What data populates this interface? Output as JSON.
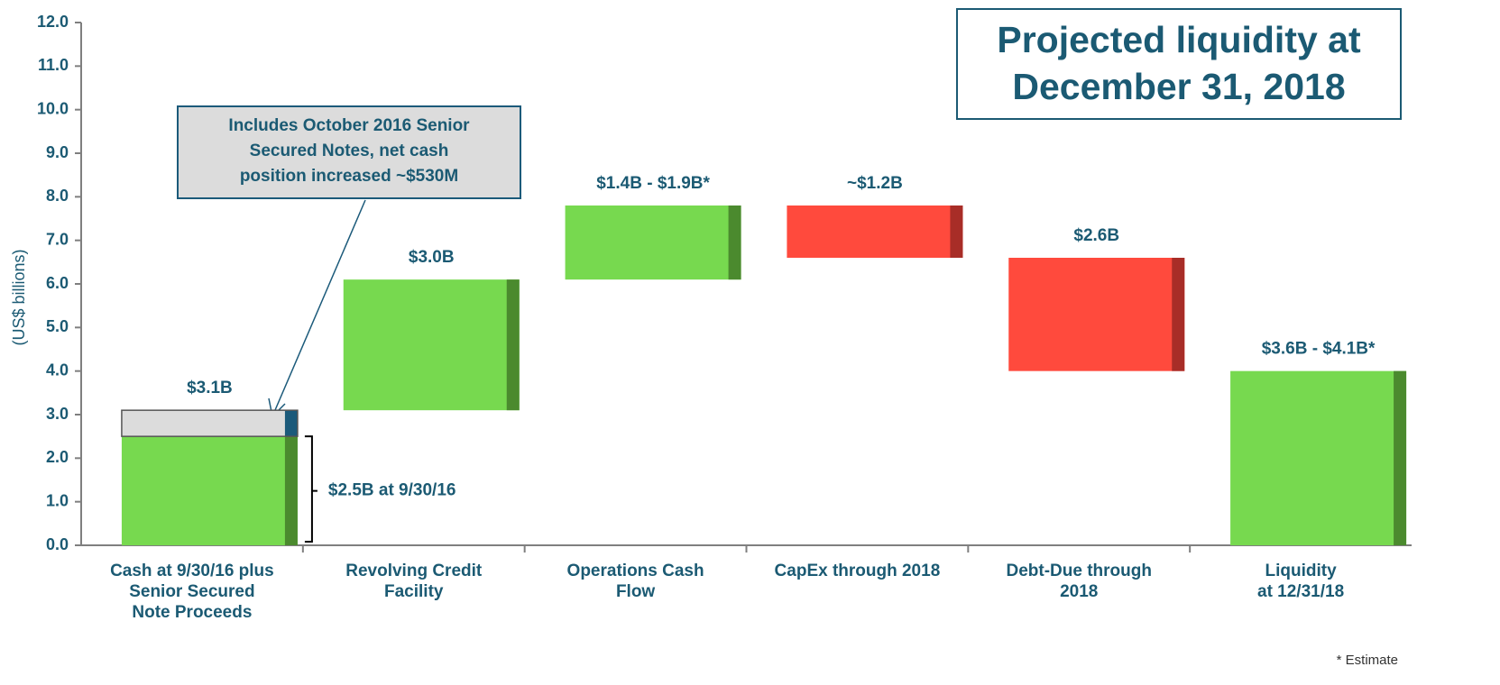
{
  "chart_data": {
    "type": "waterfall",
    "title": "Projected liquidity at\nDecember 31, 2018",
    "y_label": "(US$ billions)",
    "categories": [
      "Cash at 9/30/16 plus\nSenior Secured\nNote Proceeds",
      "Revolving Credit\nFacility",
      "Operations Cash\nFlow",
      "CapEx through 2018",
      "Debt-Due through\n2018",
      "Liquidity\nat 12/31/18"
    ],
    "measure": [
      "absolute",
      "relative",
      "relative",
      "relative",
      "relative",
      "total"
    ],
    "values": [
      3.1,
      3.0,
      1.7,
      -1.2,
      -2.6,
      4.0
    ],
    "value_labels": [
      "$3.1B",
      "$3.0B",
      "$1.4B - $1.9B*",
      "~$1.2B",
      "$2.6B",
      "$3.6B - $4.1B*"
    ],
    "colors": {
      "increase": "#77d94f",
      "increase_edge": "#4b8a2e",
      "decrease": "#ff4a3d",
      "decrease_edge": "#a82d27",
      "added": "#dcdcdc",
      "added_edge": "#1b5a7a"
    },
    "bracket": {
      "value": 2.5,
      "label": "$2.5B at 9/30/16"
    },
    "callout": "Includes October 2016 Senior\nSecured Notes, net cash\nposition increased ~$530M",
    "footnote": "* Estimate",
    "ylim": [
      0,
      12
    ],
    "yticks": [
      {
        "value": 0,
        "label": "0.0"
      },
      {
        "value": 1,
        "label": "1.0"
      },
      {
        "value": 2,
        "label": "2.0"
      },
      {
        "value": 3,
        "label": "3.0"
      },
      {
        "value": 4,
        "label": "4.0"
      },
      {
        "value": 5,
        "label": "5.0"
      },
      {
        "value": 6,
        "label": "6.0"
      },
      {
        "value": 7,
        "label": "7.0"
      },
      {
        "value": 8,
        "label": "8.0"
      },
      {
        "value": 9,
        "label": "9.0"
      },
      {
        "value": 10,
        "label": "10.0"
      },
      {
        "value": 11,
        "label": "11.0"
      },
      {
        "value": 12,
        "label": "12.0"
      }
    ]
  }
}
